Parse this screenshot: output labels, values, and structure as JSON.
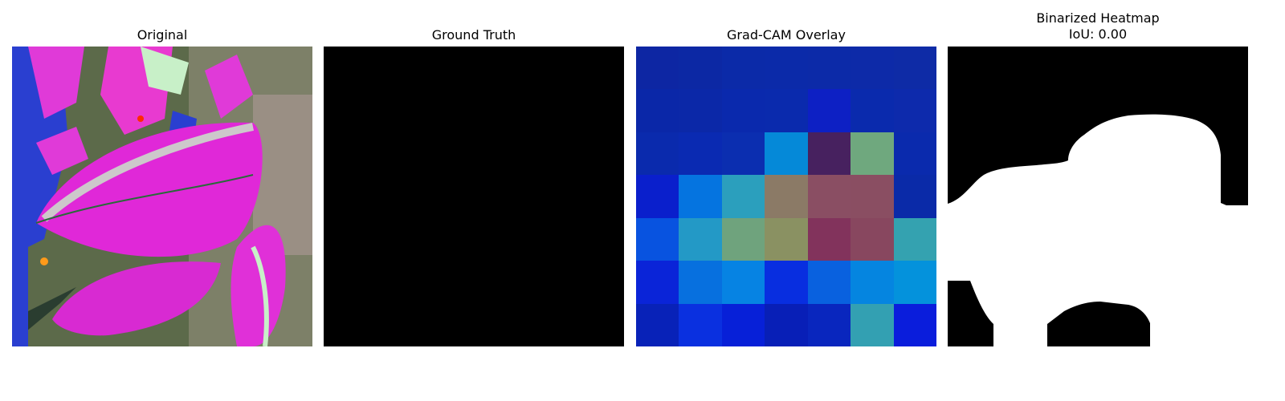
{
  "panels": [
    {
      "title": "Original"
    },
    {
      "title": "Ground Truth"
    },
    {
      "title": "Grad-CAM Overlay"
    },
    {
      "title": "Binarized Heatmap",
      "subtitle": "IoU: 0.00"
    }
  ],
  "gradcam_grid": [
    [
      "#0d26a3",
      "#0c28a4",
      "#0b2aa8",
      "#0b2aa9",
      "#0c2aa8",
      "#0d2aa8",
      "#0e2ba6"
    ],
    [
      "#0a27a8",
      "#0b28a8",
      "#0a29ad",
      "#0a2aad",
      "#0d20c4",
      "#0a2aad",
      "#0d2aac"
    ],
    [
      "#0a2aad",
      "#0a2ab2",
      "#0b2eb0",
      "#0589d8",
      "#47215f",
      "#6fa87e",
      "#0a2aad"
    ],
    [
      "#0a1fcc",
      "#0574e0",
      "#2b9fbd",
      "#8b7a66",
      "#8a4e63",
      "#8a4e62",
      "#0a2aa8"
    ],
    [
      "#0853e0",
      "#2399c6",
      "#6fa37d",
      "#8a9162",
      "#82335c",
      "#88475f",
      "#34a2b0"
    ],
    [
      "#0a24d8",
      "#0770df",
      "#0683e3",
      "#082ee0",
      "#0961df",
      "#0585e0",
      "#0492dc"
    ],
    [
      "#0822b8",
      "#0a30e0",
      "#0720d8",
      "#081fb7",
      "#0926be",
      "#33a0b2",
      "#0a1ddc"
    ]
  ]
}
